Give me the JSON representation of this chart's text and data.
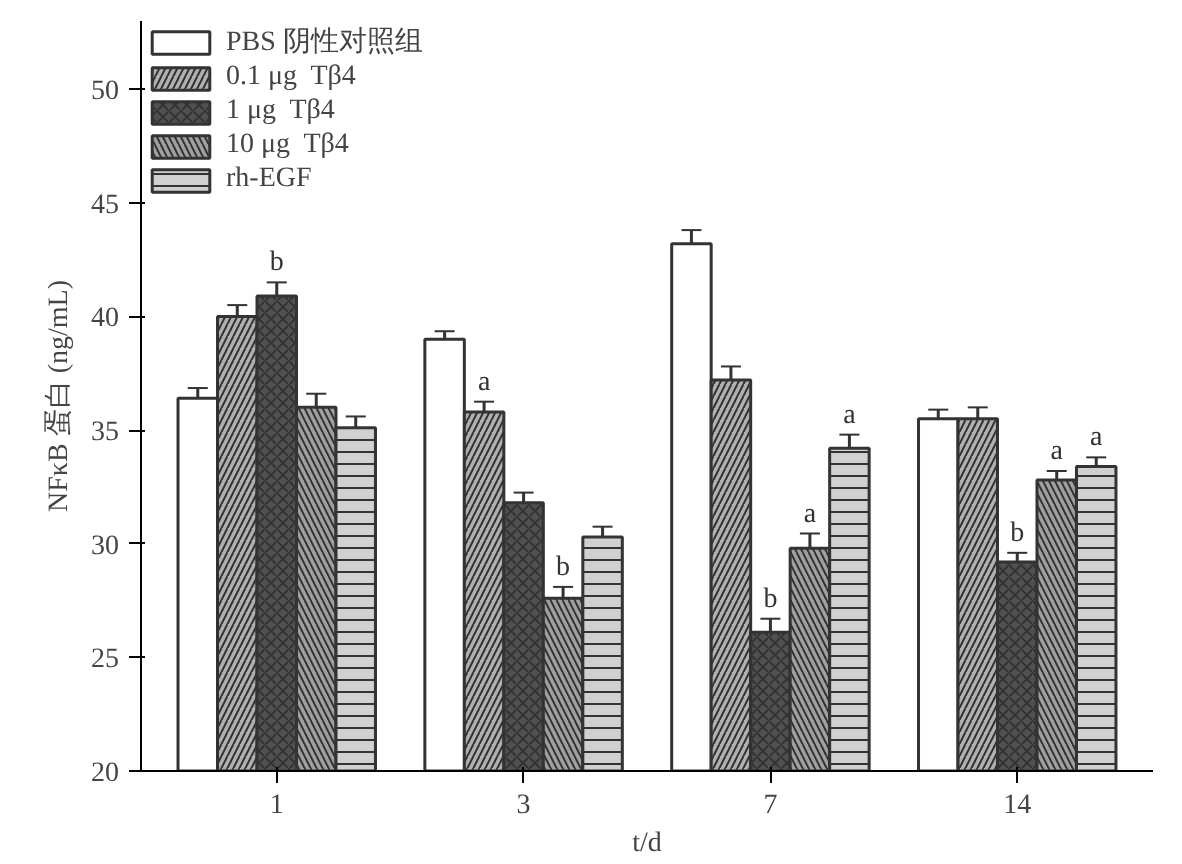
{
  "chart_data": {
    "type": "bar",
    "xlabel": "t/d",
    "ylabel": "NFκB 蛋白 (ng/mL)",
    "categories": [
      "1",
      "3",
      "7",
      "14"
    ],
    "ylim": [
      20,
      53
    ],
    "yticks": [
      20,
      25,
      30,
      35,
      40,
      45,
      50
    ],
    "grid": false,
    "legend": "top left",
    "series": [
      {
        "name": "PBS 阴性对照组",
        "color": "#ffffff",
        "values": [
          36.4,
          39.0,
          43.2,
          35.5
        ],
        "errors": [
          0.45,
          0.35,
          0.6,
          0.4
        ],
        "value_labels": [
          null,
          null,
          null,
          null
        ]
      },
      {
        "name": "0.1 μg  Tβ4",
        "color": "#b0b0b0",
        "values": [
          40.0,
          35.8,
          37.2,
          35.5
        ],
        "errors": [
          0.5,
          0.45,
          0.6,
          0.5
        ],
        "value_labels": [
          null,
          "a",
          null,
          null
        ]
      },
      {
        "name": "1 μg  Tβ4",
        "color": "#505050",
        "values": [
          40.9,
          31.8,
          26.1,
          29.2
        ],
        "errors": [
          0.6,
          0.45,
          0.6,
          0.4
        ],
        "value_labels": [
          "b",
          null,
          "b",
          "b"
        ]
      },
      {
        "name": "10 μg  Tβ4",
        "color": "#a0a0a0",
        "values": [
          36.0,
          27.6,
          29.8,
          32.8
        ],
        "errors": [
          0.6,
          0.5,
          0.65,
          0.4
        ],
        "value_labels": [
          null,
          "b",
          "a",
          "a"
        ]
      },
      {
        "name": "rh-EGF",
        "color": "#d0d0d0",
        "values": [
          35.1,
          30.3,
          34.2,
          33.4
        ],
        "errors": [
          0.5,
          0.45,
          0.6,
          0.4
        ],
        "value_labels": [
          null,
          null,
          "a",
          "a"
        ]
      }
    ]
  }
}
